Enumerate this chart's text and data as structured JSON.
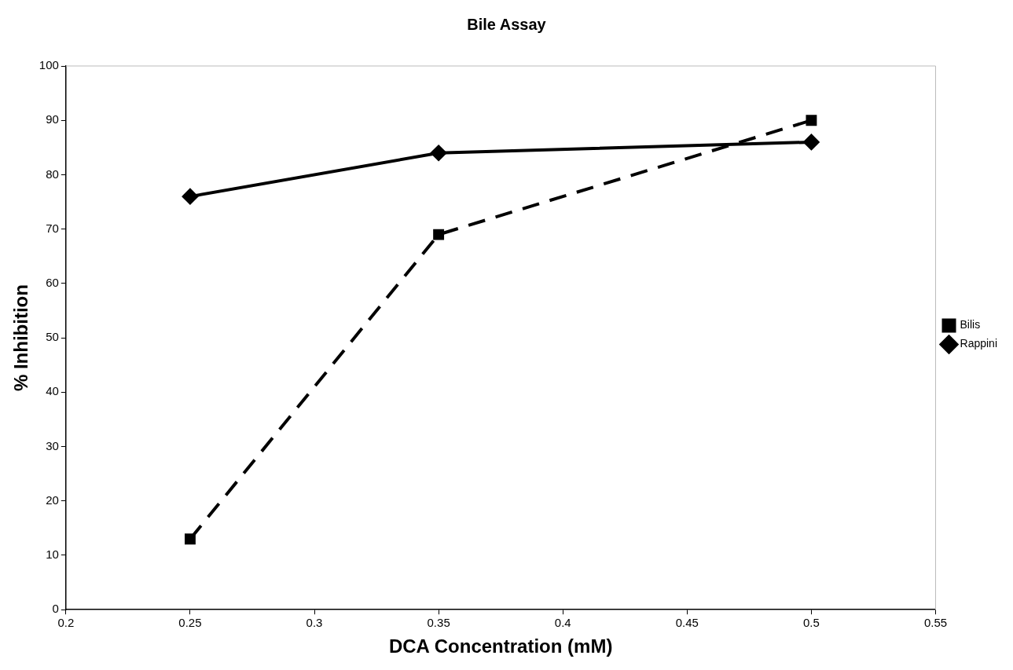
{
  "chart_data": {
    "type": "line",
    "title": "Bile Assay",
    "xlabel": "DCA Concentration (mM)",
    "ylabel": "% Inhibition",
    "x": [
      0.25,
      0.35,
      0.5
    ],
    "series": [
      {
        "name": "Bilis",
        "color": "#000000",
        "values": [
          13,
          69,
          90
        ],
        "marker": "square",
        "line_style": "dashed"
      },
      {
        "name": "Rappini",
        "color": "#000000",
        "values": [
          76,
          84,
          86
        ],
        "marker": "diamond",
        "line_style": "solid"
      }
    ],
    "xlim": [
      0.2,
      0.55
    ],
    "xticks": [
      0.2,
      0.25,
      0.3,
      0.35,
      0.4,
      0.45,
      0.5,
      0.55
    ],
    "ylim": [
      0,
      100
    ],
    "yticks": [
      0,
      10,
      20,
      30,
      40,
      50,
      60,
      70,
      80,
      90,
      100
    ],
    "grid": false,
    "legend": "right"
  }
}
